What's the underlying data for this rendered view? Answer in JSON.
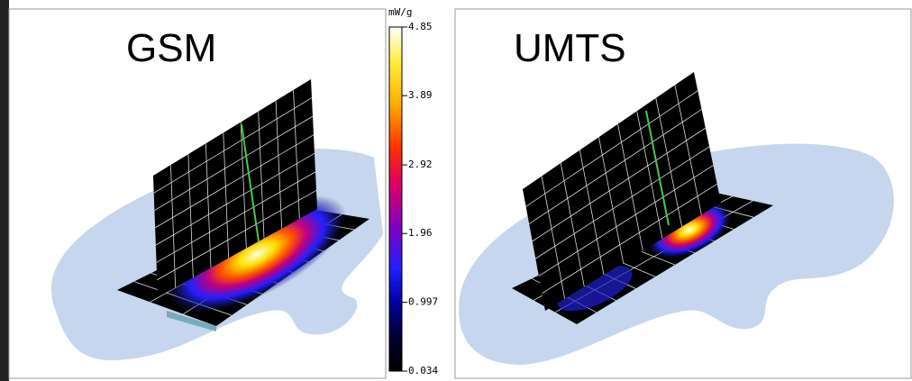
{
  "panels": [
    {
      "label": "GSM"
    },
    {
      "label": "UMTS"
    }
  ],
  "colorbar": {
    "unit": "mW/g",
    "ylim": [
      0.034,
      4.85
    ],
    "yticks": [
      4.85,
      3.89,
      2.92,
      1.96,
      0.997,
      0.034
    ]
  }
}
